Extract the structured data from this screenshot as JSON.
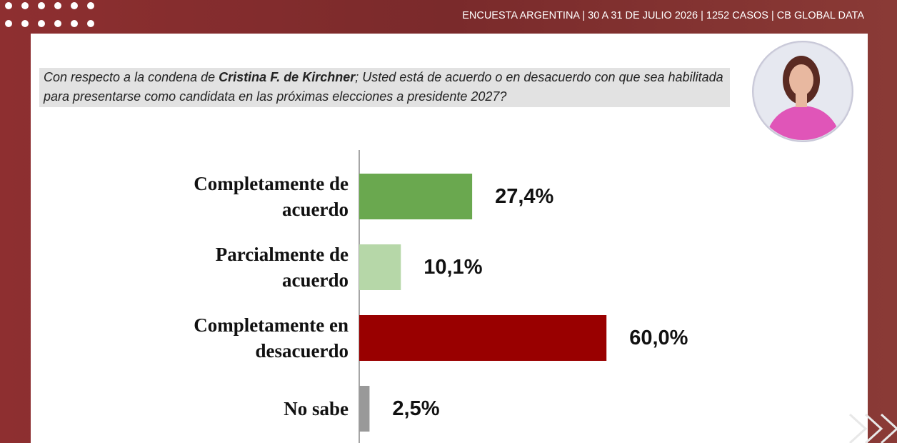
{
  "header": "ENCUESTA ARGENTINA | 30 A 31 DE JULIO 2026 | 1252 CASOS | CB GLOBAL DATA",
  "chart_data": {
    "type": "bar",
    "title_parts": [
      "Con respecto a la condena de ",
      "Cristina F. de Kirchner",
      "; Usted está de acuerdo o en desacuerdo con que sea habilitada para presentarse como candidata en las próximas elecciones a presidente 2027?"
    ],
    "categories": [
      "Completamente de acuerdo",
      "Parcialmente de acuerdo",
      "Completamente en desacuerdo",
      "No sabe"
    ],
    "values": [
      27.4,
      10.1,
      60.0,
      2.5
    ],
    "value_labels": [
      "27,4%",
      "10,1%",
      "60,0%",
      "2,5%"
    ],
    "colors": [
      "#6aa84f",
      "#b6d7a8",
      "#990000",
      "#999999"
    ]
  }
}
